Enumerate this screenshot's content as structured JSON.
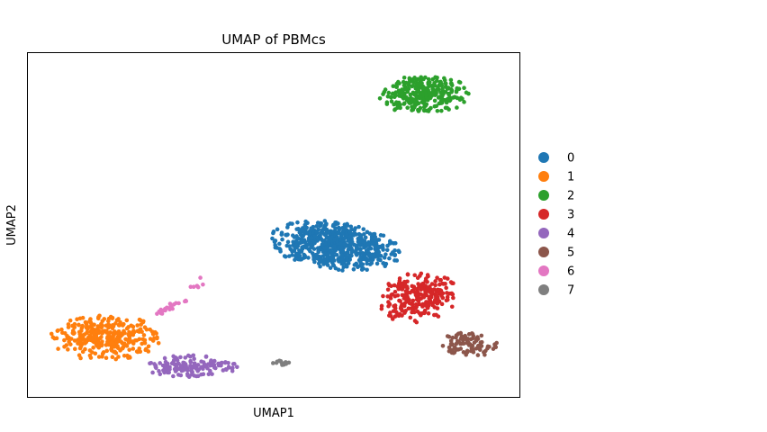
{
  "chart_data": {
    "type": "scatter",
    "title": "UMAP of PBMcs",
    "xlabel": "UMAP1",
    "ylabel": "UMAP2",
    "xlim": [
      0,
      100
    ],
    "ylim": [
      0,
      100
    ],
    "grid": false,
    "ticks": "none",
    "legend": {
      "placement": "right-outside"
    },
    "clusters": [
      {
        "name": "0",
        "color": "#1f77b4",
        "n": 620,
        "shape": "ellipse",
        "center": [
          62.3,
          44.0
        ],
        "radius": [
          13.5,
          7.0
        ],
        "angle": -12
      },
      {
        "name": "1",
        "color": "#ff7f0e",
        "n": 330,
        "shape": "ellipse",
        "center": [
          15.8,
          17.2
        ],
        "radius": [
          11.0,
          6.6
        ],
        "angle": 0
      },
      {
        "name": "2",
        "color": "#2ca02c",
        "n": 280,
        "shape": "ellipse",
        "center": [
          80.5,
          88.0
        ],
        "radius": [
          9.0,
          5.8
        ],
        "angle": 0
      },
      {
        "name": "3",
        "color": "#d62728",
        "n": 240,
        "shape": "ellipse",
        "center": [
          79.5,
          29.0
        ],
        "radius": [
          8.2,
          7.0
        ],
        "angle": 40
      },
      {
        "name": "4",
        "color": "#9467bd",
        "n": 140,
        "shape": "ellipse",
        "center": [
          33.0,
          9.0
        ],
        "radius": [
          10.0,
          3.3
        ],
        "angle": 0
      },
      {
        "name": "5",
        "color": "#8c564b",
        "n": 90,
        "shape": "ellipse",
        "center": [
          89.5,
          15.2
        ],
        "radius": [
          5.8,
          3.6
        ],
        "angle": 0
      },
      {
        "name": "6",
        "color": "#e377c2",
        "n": 30,
        "shape": "arc",
        "from": [
          26.0,
          24.0
        ],
        "to": [
          36.0,
          35.0
        ]
      },
      {
        "name": "7",
        "color": "#7f7f7f",
        "n": 12,
        "shape": "ellipse",
        "center": [
          51.5,
          10.0
        ],
        "radius": [
          1.8,
          0.7
        ],
        "angle": 0
      }
    ]
  }
}
